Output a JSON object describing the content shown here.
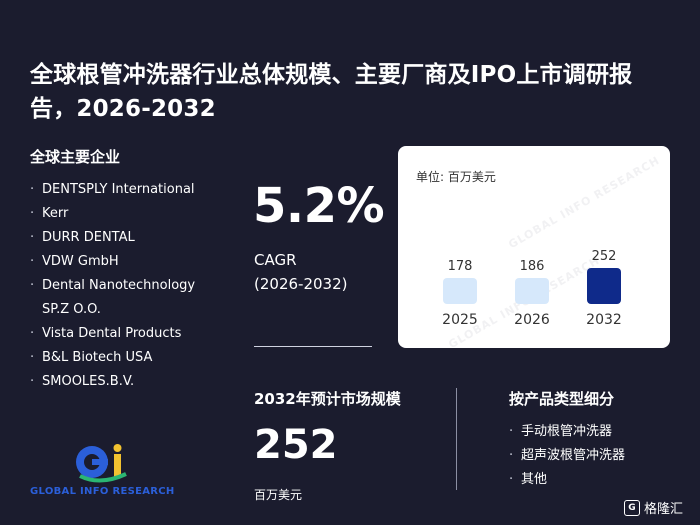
{
  "title": "全球根管冲洗器行业总体规模、主要厂商及IPO上市调研报告，2026-2032",
  "companies": {
    "heading": "全球主要企业",
    "items": [
      "DENTSPLY International",
      "Kerr",
      "DURR DENTAL",
      "VDW GmbH",
      "Dental Nanotechnology SP.Z O.O.",
      "Vista Dental Products",
      "B&L Biotech USA",
      "SMOOLES.B.V."
    ]
  },
  "cagr": {
    "value": "5.2%",
    "label": "CAGR",
    "period": "(2026-2032)"
  },
  "chart_data": {
    "type": "bar",
    "unit_label": "单位: 百万美元",
    "categories": [
      "2025",
      "2026",
      "2032"
    ],
    "values": [
      178,
      186,
      252
    ],
    "colors": [
      "#d6e8fb",
      "#d6e8fb",
      "#0f2a8a"
    ]
  },
  "market": {
    "heading": "2032年预计市场规模",
    "value": "252",
    "unit": "百万美元"
  },
  "segments": {
    "heading": "按产品类型细分",
    "items": [
      "手动根管冲洗器",
      "超声波根管冲洗器",
      "其他"
    ]
  },
  "logo": {
    "text": "GLOBAL INFO RESEARCH"
  },
  "watermark": {
    "text": "GLOBAL INFO RESEARCH"
  },
  "corner_brand": {
    "icon_letter": "G",
    "name": "格隆汇"
  }
}
